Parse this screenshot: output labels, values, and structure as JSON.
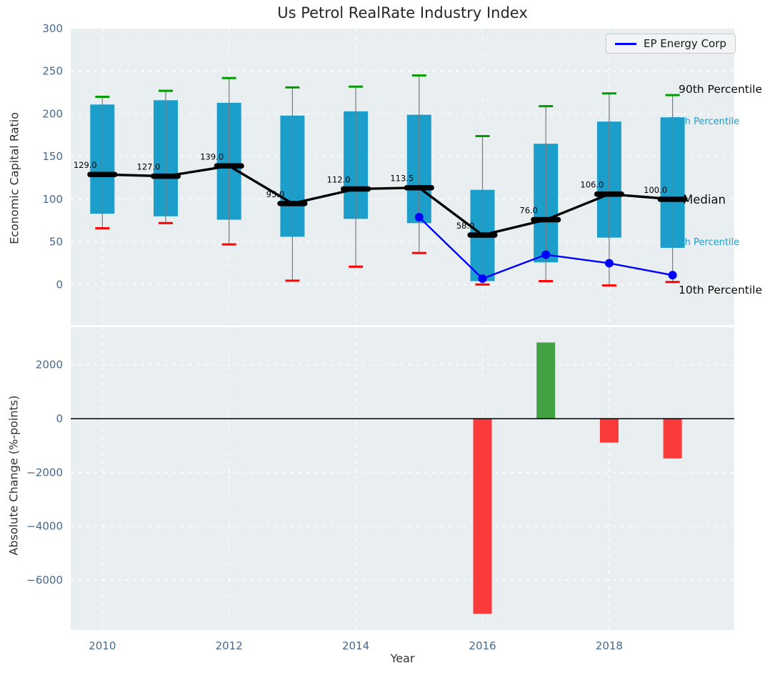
{
  "title": "Us Petrol RealRate Industry Index",
  "legend": {
    "label": "EP Energy Corp"
  },
  "axes": {
    "x": {
      "label": "Year",
      "tick_labels": [
        "2010",
        "2012",
        "2014",
        "2016",
        "2018"
      ],
      "tick_values": [
        2010,
        2012,
        2014,
        2016,
        2018
      ]
    },
    "top": {
      "ylabel": "Economic Capital Ratio",
      "tick_labels": [
        "0",
        "50",
        "100",
        "150",
        "200",
        "250",
        "300"
      ],
      "tick_values": [
        0,
        50,
        100,
        150,
        200,
        250,
        300
      ]
    },
    "bottom": {
      "ylabel": "Absolute Change (%-points)",
      "tick_labels": [
        "2000",
        "0",
        "−2000",
        "−4000",
        "−6000"
      ],
      "tick_values": [
        2000,
        0,
        -2000,
        -4000,
        -6000
      ]
    }
  },
  "annotations": {
    "p90": "90th Percentile",
    "p75": "75th Percentile",
    "median": "Median",
    "p25": "25th Percentile",
    "p10": "10th Percentile"
  },
  "colors": {
    "panel_bg": "#e9eef0",
    "grid": "#ffffff",
    "box": "#1c9ecb",
    "whisker": "#7a7a7a",
    "cap_high": "#009b00",
    "cap_low": "#ff0000",
    "median": "#000000",
    "company_line": "#0000ff",
    "bar_up": "#42a142",
    "bar_down": "#fb3b3b",
    "tick_label": "#47698c",
    "annotation_dark": "#0d0d0d",
    "annotation_cyan": "#1c9ecb",
    "zero_line": "#000000"
  },
  "chart_data": [
    {
      "type": "box-whisker+line",
      "title": "Us Petrol RealRate Industry Index",
      "xlabel": "Year",
      "ylabel": "Economic Capital Ratio",
      "ylim": [
        -48,
        300
      ],
      "yticks": [
        0,
        50,
        100,
        150,
        200,
        250,
        300
      ],
      "x": [
        2010,
        2011,
        2012,
        2013,
        2014,
        2015,
        2016,
        2017,
        2018,
        2019
      ],
      "series": [
        {
          "name": "90th Percentile",
          "values": [
            220,
            227,
            242,
            231,
            232,
            245,
            174,
            209,
            224,
            222
          ]
        },
        {
          "name": "75th Percentile",
          "values": [
            211,
            216,
            213,
            198,
            203,
            199,
            111,
            165,
            191,
            196
          ]
        },
        {
          "name": "Median",
          "values": [
            129.0,
            127.0,
            139.0,
            95.0,
            112.0,
            113.5,
            58.0,
            76.0,
            106.0,
            100.0
          ]
        },
        {
          "name": "25th Percentile",
          "values": [
            83,
            80,
            76,
            56,
            77,
            72,
            4,
            26,
            55,
            43
          ]
        },
        {
          "name": "10th Percentile",
          "values": [
            66,
            72,
            47,
            4.5,
            21,
            37,
            0,
            4,
            -1,
            3
          ]
        },
        {
          "name": "EP Energy Corp",
          "x": [
            2015,
            2016,
            2017,
            2018,
            2019
          ],
          "values": [
            79,
            7,
            35,
            25,
            11
          ]
        }
      ],
      "median_labels": [
        "129.0",
        "127.0",
        "139.0",
        "95.0",
        "112.0",
        "113.5",
        "58.0",
        "76.0",
        "106.0",
        "100.0"
      ],
      "legend_position": "upper right",
      "grid": true
    },
    {
      "type": "bar",
      "xlabel": "Year",
      "ylabel": "Absolute Change (%-points)",
      "x": [
        2016,
        2017,
        2018,
        2019
      ],
      "values": [
        -7250,
        2830,
        -890,
        -1480
      ],
      "ylim": [
        -7860,
        3400
      ],
      "yticks": [
        2000,
        0,
        -2000,
        -4000,
        -6000
      ],
      "grid": true
    }
  ]
}
